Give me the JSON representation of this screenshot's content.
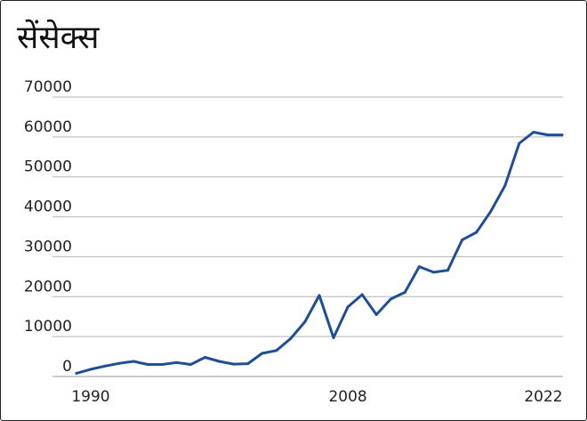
{
  "chart_data": {
    "type": "line",
    "title": "सेंसेक्स",
    "xlabel": "",
    "ylabel": "",
    "xlim": [
      1990,
      2023
    ],
    "ylim": [
      0,
      70000
    ],
    "y_ticks": [
      0,
      10000,
      20000,
      30000,
      40000,
      50000,
      60000,
      70000
    ],
    "y_tick_labels": [
      "0",
      "10000",
      "20000",
      "30000",
      "40000",
      "50000",
      "60000",
      "70000"
    ],
    "x_ticks": [
      1990,
      2008,
      2022
    ],
    "x_tick_labels": [
      "1990",
      "2008",
      "2022"
    ],
    "grid": true,
    "legend": "none",
    "color": "#1f4e96",
    "series": [
      {
        "x": [
          1989,
          1990,
          1991,
          1992,
          1993,
          1994,
          1995,
          1996,
          1997,
          1998,
          1999,
          2000,
          2001,
          2002,
          2003,
          2004,
          2005,
          2006,
          2007,
          2008,
          2009,
          2010,
          2011,
          2012,
          2013,
          2014,
          2015,
          2016,
          2017,
          2018,
          2019,
          2020,
          2021,
          2022,
          2023
        ],
        "values": [
          800,
          1800,
          2600,
          3300,
          3800,
          3000,
          3000,
          3500,
          3000,
          4800,
          3800,
          3100,
          3200,
          5800,
          6500,
          9500,
          13700,
          20300,
          9700,
          17400,
          20500,
          15500,
          19400,
          21100,
          27500,
          26100,
          26600,
          34200,
          36100,
          41300,
          47800,
          58400,
          61200,
          60500,
          60500
        ]
      }
    ]
  }
}
